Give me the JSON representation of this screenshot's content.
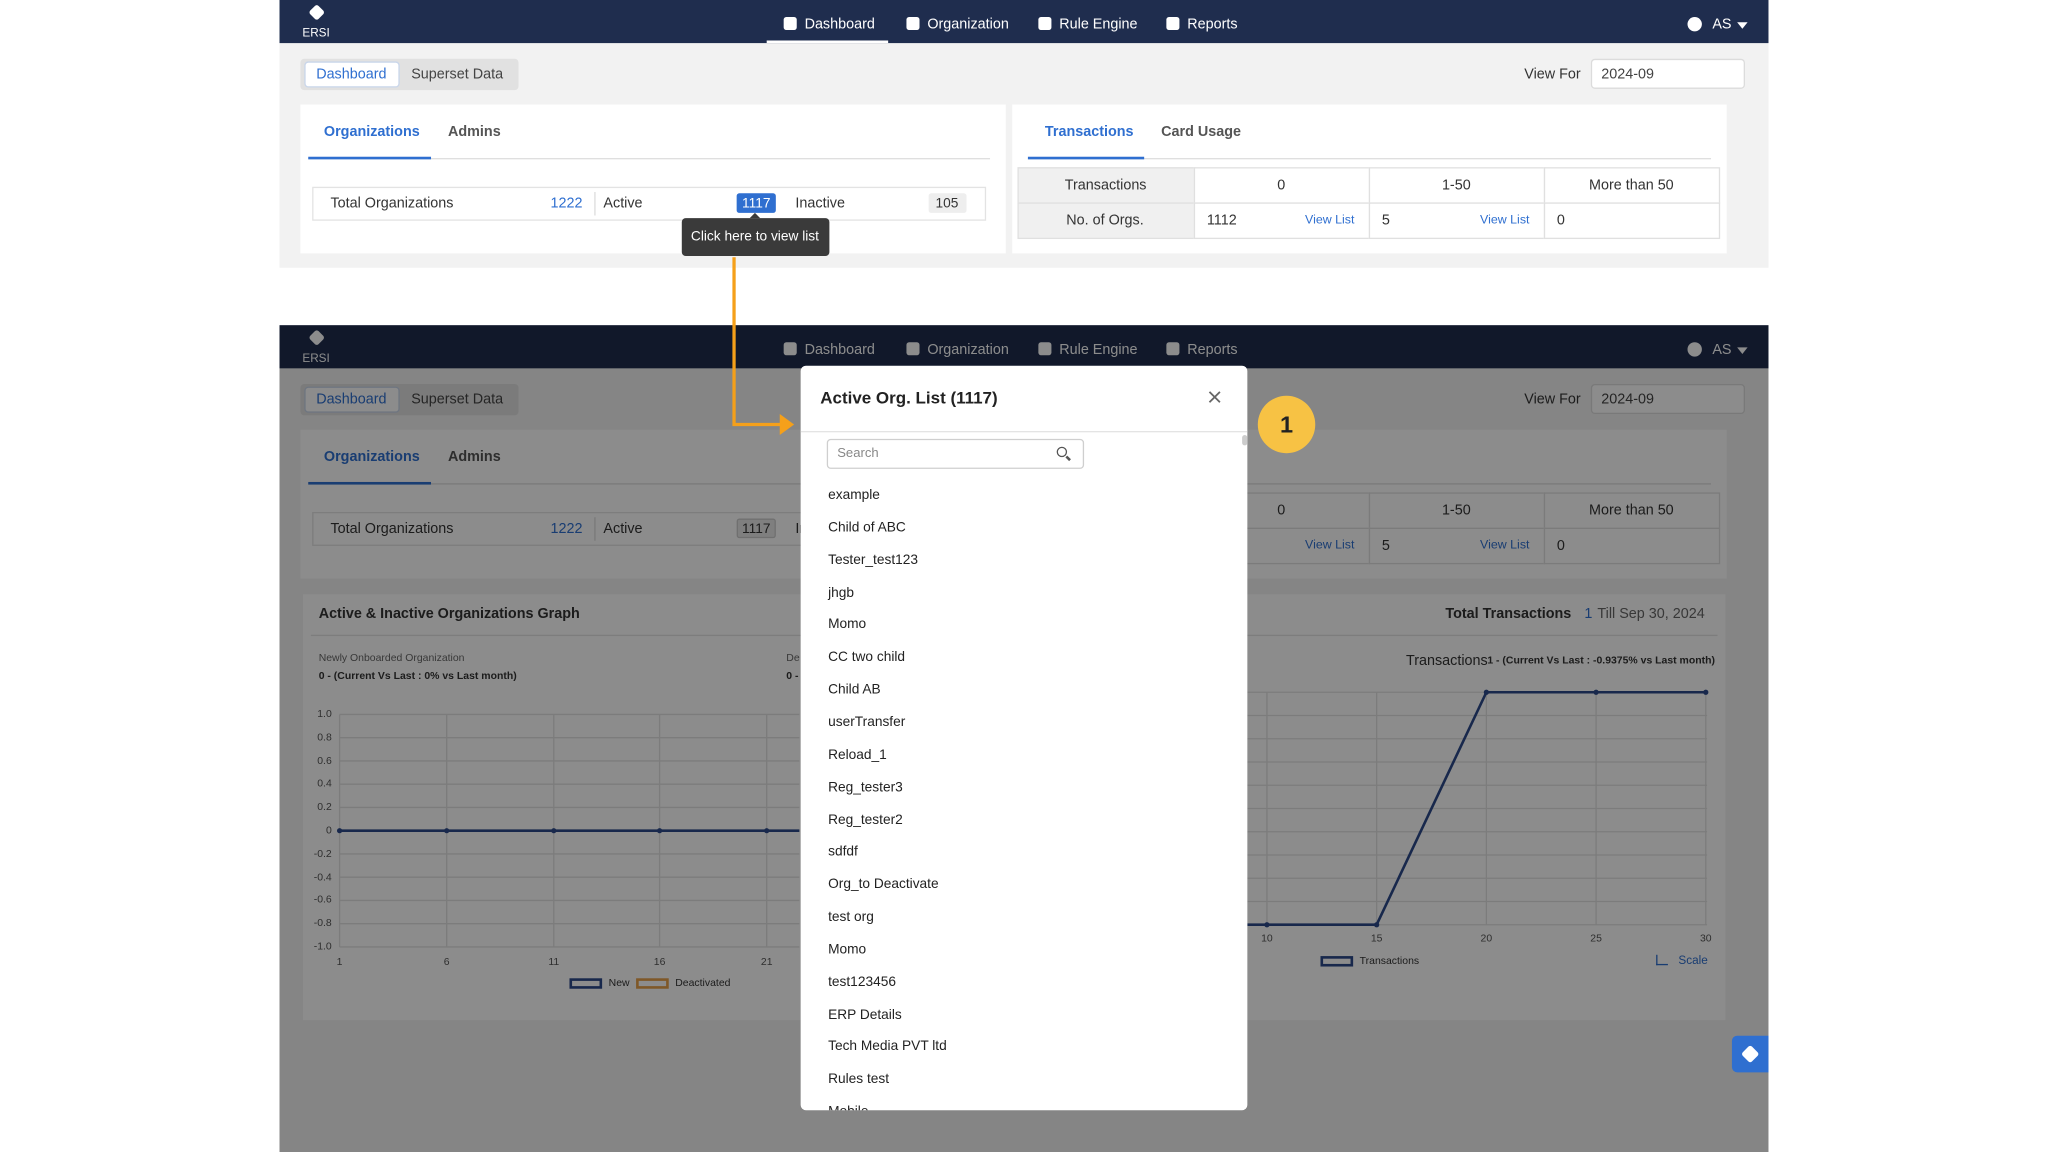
{
  "navbar": {
    "logo": "ERSI",
    "items": [
      "Dashboard",
      "Organization",
      "Rule Engine",
      "Reports"
    ],
    "user": "AS"
  },
  "tabs": [
    "Dashboard",
    "Superset Data"
  ],
  "view_for": {
    "label": "View For",
    "value": "2024-09"
  },
  "org_card": {
    "tabs": [
      "Organizations",
      "Admins"
    ],
    "total_label": "Total Organizations",
    "total": 1222,
    "active_label": "Active",
    "active": 1117,
    "inactive_label": "Inactive",
    "inactive": 105,
    "tooltip": "Click here to view list"
  },
  "txn_card": {
    "tabs": [
      "Transactions",
      "Card Usage"
    ],
    "header": [
      "Transactions",
      0,
      "1-50",
      "More than 50"
    ],
    "row_label": "No. of Orgs.",
    "cells": [
      {
        "value": 1112,
        "link": "View List"
      },
      {
        "value": 5,
        "link": "View List"
      },
      {
        "value": 0
      }
    ]
  },
  "graph": {
    "title": "Active & Inactive Organizations Graph",
    "total_label": "Total Transactions",
    "total": 1,
    "till": "Till Sep 30, 2024",
    "left": {
      "label": "Newly Onboarded Organization",
      "summary": "0 - (Current Vs Last : 0% vs Last month)",
      "yticks": [
        "1.0",
        "0.8",
        "0.6",
        "0.4",
        "0.2",
        "0",
        "-0.2",
        "-0.4",
        "-0.6",
        "-0.8",
        "-1.0"
      ],
      "xticks": [
        1,
        6,
        11,
        16,
        21
      ],
      "legend": [
        "New",
        "Deactivated"
      ]
    },
    "middle": {
      "label": "De",
      "summary": "0 -"
    },
    "right": {
      "label": "Transactions",
      "summary": "1 - (Current Vs Last : -0.9375% vs Last month)",
      "xticks": [
        10,
        15,
        20,
        25,
        30
      ],
      "legend": "Transactions",
      "scale": "Scale"
    }
  },
  "modal": {
    "title": "Active Org. List (1117)",
    "search": "Search",
    "items": [
      "example",
      "Child of ABC",
      "Tester_test123",
      "jhgb",
      "Momo",
      "CC two child",
      "Child AB",
      "userTransfer",
      "Reload_1",
      "Reg_tester3",
      "Reg_tester2",
      "sdfdf",
      "Org_to Deactivate",
      "test org",
      "Momo",
      "test123456",
      "ERP Details",
      "Tech Media PVT ltd",
      "Rules test",
      "Mobile"
    ]
  },
  "step": "1"
}
